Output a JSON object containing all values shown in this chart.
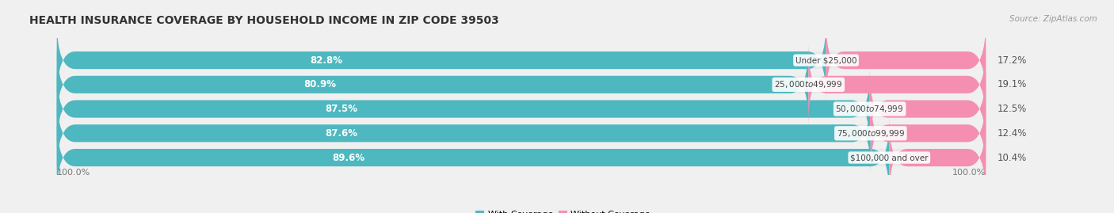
{
  "title": "HEALTH INSURANCE COVERAGE BY HOUSEHOLD INCOME IN ZIP CODE 39503",
  "source": "Source: ZipAtlas.com",
  "categories": [
    "Under $25,000",
    "$25,000 to $49,999",
    "$50,000 to $74,999",
    "$75,000 to $99,999",
    "$100,000 and over"
  ],
  "with_coverage": [
    82.8,
    80.9,
    87.5,
    87.6,
    89.6
  ],
  "without_coverage": [
    17.2,
    19.1,
    12.5,
    12.4,
    10.4
  ],
  "color_coverage": "#4db8c0",
  "color_no_coverage": "#f48fb1",
  "bg_color": "#f0f0f0",
  "bar_bg_color": "#e8e8e8",
  "title_fontsize": 10,
  "label_fontsize": 8.5,
  "tick_fontsize": 8,
  "legend_fontsize": 8,
  "source_fontsize": 7.5,
  "x_left_label": "100.0%",
  "x_right_label": "100.0%",
  "bar_total": 100.0,
  "bar_height": 0.72,
  "bar_gap": 0.28
}
